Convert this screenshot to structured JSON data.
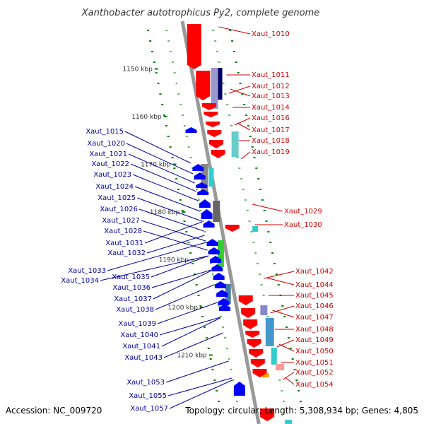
{
  "title": "Xanthobacter autotrophicus Py2, complete genome",
  "footer": {
    "accession": "Accession: NC_009720",
    "topology": "Topology: circular; Length: 5,308,934 bp; Genes: 4,805"
  },
  "colors": {
    "backbone": "#999999",
    "forward": "#ff0000",
    "reverse": "#0000ff",
    "label_forward": "#cc0000",
    "label_reverse": "#000099",
    "ticks": "#008000",
    "ticks_light": "#66bb66"
  },
  "scale": {
    "start_kbp": 1140,
    "end_kbp": 1220,
    "labels": [
      {
        "text": "1150 kbp",
        "kbp": 1150
      },
      {
        "text": "1160 kbp",
        "kbp": 1160
      },
      {
        "text": "1170 kbp",
        "kbp": 1170
      },
      {
        "text": "1180 kbp",
        "kbp": 1180
      },
      {
        "text": "1190 kbp",
        "kbp": 1190
      },
      {
        "text": "1200 kbp",
        "kbp": 1200
      },
      {
        "text": "1210 kbp",
        "kbp": 1210
      }
    ]
  },
  "forward_labels": [
    "Xaut_1010",
    "Xaut_1011",
    "Xaut_1012",
    "Xaut_1013",
    "Xaut_1014",
    "Xaut_1016",
    "Xaut_1017",
    "Xaut_1018",
    "Xaut_1019",
    "Xaut_1029",
    "Xaut_1030",
    "Xaut_1042",
    "Xaut_1044",
    "Xaut_1045",
    "Xaut_1046",
    "Xaut_1047",
    "Xaut_1048",
    "Xaut_1049",
    "Xaut_1050",
    "Xaut_1051",
    "Xaut_1052",
    "Xaut_1054"
  ],
  "reverse_labels": [
    "Xaut_1015",
    "Xaut_1020",
    "Xaut_1021",
    "Xaut_1022",
    "Xaut_1023",
    "Xaut_1024",
    "Xaut_1025",
    "Xaut_1026",
    "Xaut_1027",
    "Xaut_1028",
    "Xaut_1031",
    "Xaut_1032",
    "Xaut_1033",
    "Xaut_1034",
    "Xaut_1035",
    "Xaut_1036",
    "Xaut_1037",
    "Xaut_1038",
    "Xaut_1039",
    "Xaut_1040",
    "Xaut_1041",
    "Xaut_1043",
    "Xaut_1053",
    "Xaut_1055",
    "Xaut_1057"
  ]
}
